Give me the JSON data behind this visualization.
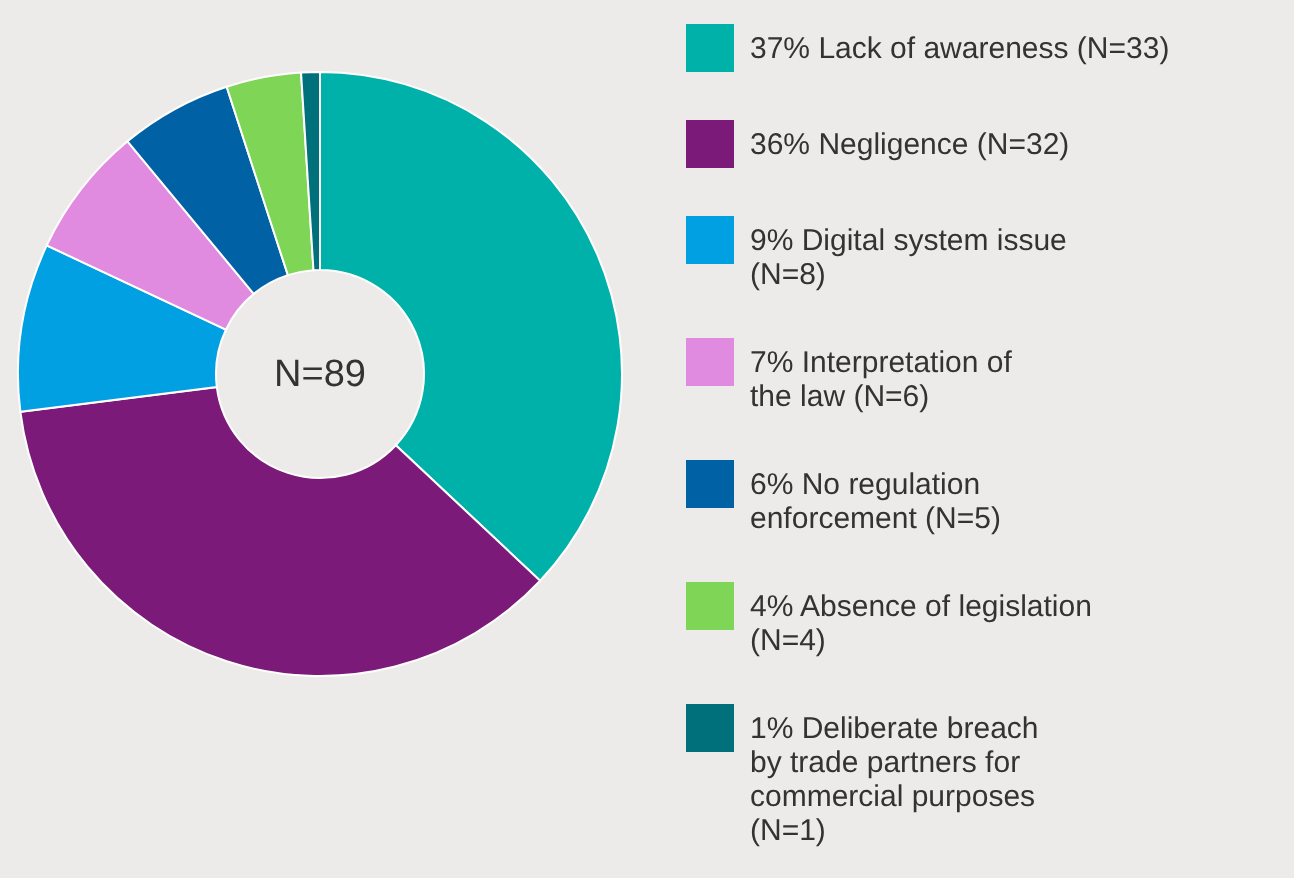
{
  "chart_data": {
    "type": "donut",
    "categories": [
      "Lack of awareness (N=33)",
      "Negligence (N=32)",
      "Digital system issue\n(N=8)",
      "Interpretation of\nthe law (N=6)",
      "No regulation\nenforcement (N=5)",
      "Absence of legislation\n(N=4)",
      "Deliberate breach\nby trade partners for\ncommercial purposes\n(N=1)"
    ],
    "values": [
      37,
      36,
      9,
      7,
      6,
      4,
      1
    ],
    "value_labels": [
      "37%",
      "36%",
      "9%",
      "7%",
      "6%",
      "4%",
      "1%"
    ],
    "colors": [
      "#00b1a9",
      "#7c1a79",
      "#00a0e2",
      "#e08ae0",
      "#0061a5",
      "#7fd556",
      "#00707a"
    ],
    "annotations": [
      "N=89"
    ],
    "legend": "right"
  }
}
